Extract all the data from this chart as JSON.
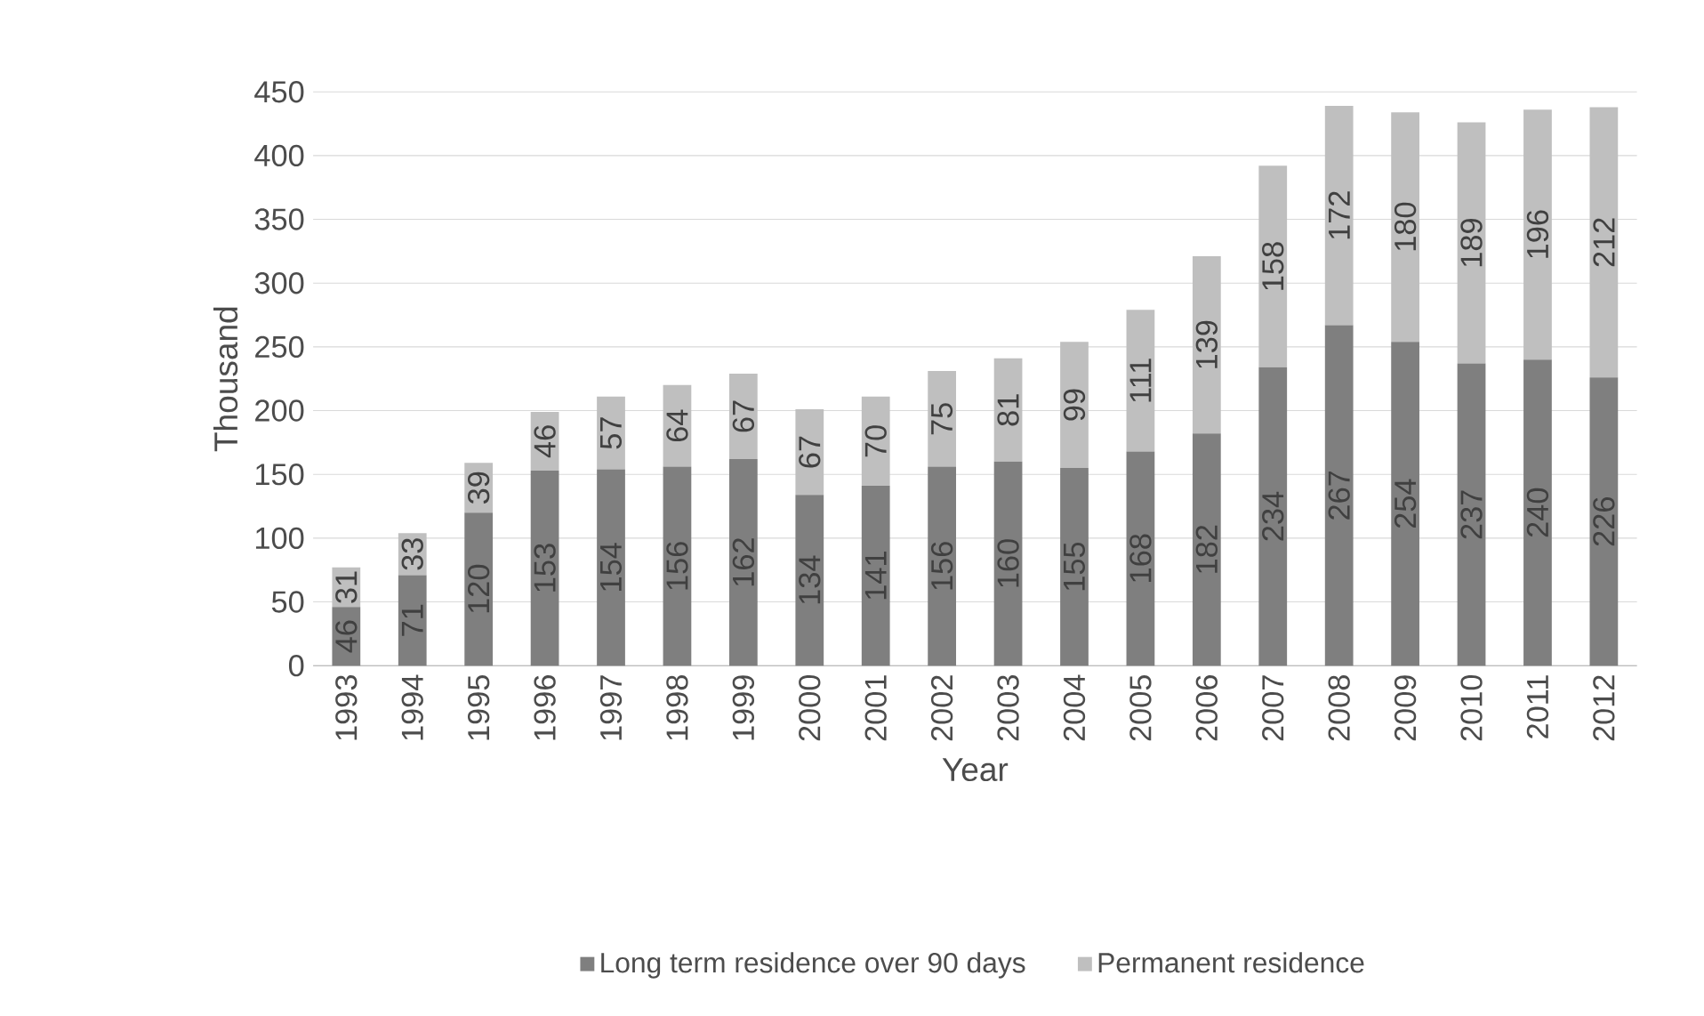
{
  "chart_data": {
    "type": "bar",
    "stacked": true,
    "xlabel": "Year",
    "ylabel": "Thousand",
    "categories": [
      "1993",
      "1994",
      "1995",
      "1996",
      "1997",
      "1998",
      "1999",
      "2000",
      "2001",
      "2002",
      "2003",
      "2004",
      "2005",
      "2006",
      "2007",
      "2008",
      "2009",
      "2010",
      "2011",
      "2012"
    ],
    "series": [
      {
        "name": "Long term residence over 90 days",
        "color": "#7f7f7f",
        "values": [
          46,
          71,
          120,
          153,
          154,
          156,
          162,
          134,
          141,
          156,
          160,
          155,
          168,
          182,
          234,
          267,
          254,
          237,
          240,
          226
        ]
      },
      {
        "name": "Permanent residence",
        "color": "#bfbfbf",
        "values": [
          31,
          33,
          39,
          46,
          57,
          64,
          67,
          67,
          70,
          75,
          81,
          99,
          111,
          139,
          158,
          172,
          180,
          189,
          196,
          212
        ]
      }
    ],
    "ylim": [
      0,
      450
    ],
    "yticks": [
      0,
      50,
      100,
      150,
      200,
      250,
      300,
      350,
      400,
      450
    ],
    "grid": "y",
    "legend": "bottom",
    "data_labels": true
  }
}
